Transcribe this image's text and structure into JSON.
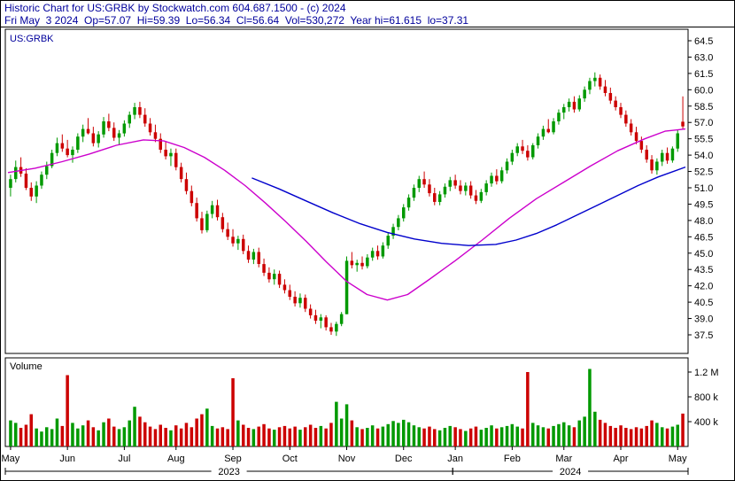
{
  "header": {
    "line1": "Historic Chart for US:GRBK by Stockwatch.com 604.687.1500 - (c) 2024",
    "line2": "Fri May  3 2024  Op=57.07  Hi=59.39  Lo=56.34  Cl=56.64  Vol=530,272  Year hi=61.615  lo=37.31"
  },
  "chart": {
    "symbol_label": "US:GRBK",
    "volume_label": "Volume"
  },
  "colors": {
    "header_text": "#00009c",
    "frame": "#000000",
    "text": "#000000",
    "up": "#009900",
    "down": "#cc0000",
    "ma_fast": "#cc00cc",
    "ma_slow": "#0000cc"
  },
  "chart_data": {
    "type": "candlestick",
    "title": "Historic Chart for US:GRBK (daily, May 2023 - May 2024)",
    "xlabel": "",
    "ylabel": "Price",
    "ylim": [
      37.5,
      64.5
    ],
    "grid": false,
    "price_axis": {
      "max": 64.5,
      "min": 37.5,
      "step": 1.5,
      "labels": [
        "64.5",
        "63.0",
        "61.5",
        "60.0",
        "58.5",
        "57.0",
        "55.5",
        "54.0",
        "52.5",
        "51.0",
        "49.5",
        "48.0",
        "46.5",
        "45.0",
        "43.5",
        "42.0",
        "40.5",
        "39.0",
        "37.5"
      ]
    },
    "volume_axis": {
      "unit_k": true,
      "ticks": [
        {
          "value": 1200,
          "label": "1.2 M"
        },
        {
          "value": 800,
          "label": "800 k"
        },
        {
          "value": 400,
          "label": "400 k"
        }
      ]
    },
    "months": [
      {
        "label": "May",
        "start": 0
      },
      {
        "label": "Jun",
        "start": 11
      },
      {
        "label": "Jul",
        "start": 22
      },
      {
        "label": "Aug",
        "start": 32
      },
      {
        "label": "Sep",
        "start": 43
      },
      {
        "label": "Oct",
        "start": 54
      },
      {
        "label": "Nov",
        "start": 65
      },
      {
        "label": "Dec",
        "start": 76
      },
      {
        "label": "Jan",
        "start": 86
      },
      {
        "label": "Feb",
        "start": 97
      },
      {
        "label": "Mar",
        "start": 107
      },
      {
        "label": "Apr",
        "start": 118
      },
      {
        "label": "May",
        "start": 129
      }
    ],
    "years": [
      {
        "label": "2023",
        "start": 0,
        "end": 86
      },
      {
        "label": "2024",
        "start": 86,
        "end": 131
      }
    ],
    "ohlc": [
      [
        51.0,
        52.2,
        50.2,
        51.8
      ],
      [
        51.8,
        53.5,
        51.5,
        52.9
      ],
      [
        52.9,
        53.8,
        52.0,
        52.3
      ],
      [
        52.3,
        52.8,
        50.8,
        51.0
      ],
      [
        51.0,
        51.5,
        49.8,
        50.2
      ],
      [
        50.2,
        51.6,
        49.6,
        51.2
      ],
      [
        51.2,
        52.5,
        50.9,
        52.2
      ],
      [
        52.2,
        53.4,
        51.8,
        53.0
      ],
      [
        53.0,
        54.5,
        52.8,
        54.2
      ],
      [
        54.2,
        55.6,
        53.9,
        55.1
      ],
      [
        55.1,
        55.9,
        54.3,
        54.6
      ],
      [
        54.6,
        55.4,
        53.8,
        54.0
      ],
      [
        54.0,
        54.8,
        53.3,
        54.5
      ],
      [
        54.5,
        56.0,
        54.2,
        55.7
      ],
      [
        55.7,
        56.8,
        55.2,
        56.4
      ],
      [
        56.4,
        57.4,
        55.9,
        56.0
      ],
      [
        56.0,
        56.6,
        54.8,
        55.1
      ],
      [
        55.1,
        56.2,
        54.7,
        55.9
      ],
      [
        55.9,
        57.5,
        55.6,
        57.1
      ],
      [
        57.1,
        57.8,
        56.2,
        56.5
      ],
      [
        56.5,
        57.0,
        55.3,
        55.6
      ],
      [
        55.6,
        56.3,
        54.9,
        56.0
      ],
      [
        56.0,
        57.2,
        55.7,
        56.9
      ],
      [
        56.9,
        58.0,
        56.5,
        57.7
      ],
      [
        57.7,
        58.8,
        57.3,
        58.4
      ],
      [
        58.4,
        58.9,
        57.4,
        57.7
      ],
      [
        57.7,
        58.3,
        56.6,
        56.9
      ],
      [
        56.9,
        57.4,
        55.8,
        56.1
      ],
      [
        56.1,
        56.8,
        55.2,
        55.5
      ],
      [
        55.5,
        56.0,
        54.2,
        54.5
      ],
      [
        54.5,
        55.2,
        53.6,
        53.9
      ],
      [
        53.9,
        54.6,
        53.0,
        54.2
      ],
      [
        54.2,
        54.6,
        52.6,
        52.9
      ],
      [
        52.9,
        53.3,
        51.5,
        51.8
      ],
      [
        51.8,
        52.4,
        50.4,
        50.7
      ],
      [
        50.7,
        51.2,
        49.3,
        49.6
      ],
      [
        49.6,
        50.1,
        47.9,
        48.2
      ],
      [
        48.2,
        48.8,
        46.8,
        47.1
      ],
      [
        47.1,
        48.9,
        46.9,
        48.6
      ],
      [
        48.6,
        49.8,
        48.2,
        49.4
      ],
      [
        49.4,
        49.9,
        48.0,
        48.3
      ],
      [
        48.3,
        48.7,
        46.9,
        47.2
      ],
      [
        47.2,
        47.8,
        46.2,
        46.5
      ],
      [
        46.5,
        47.2,
        45.6,
        45.9
      ],
      [
        45.9,
        46.6,
        45.3,
        46.3
      ],
      [
        46.3,
        46.7,
        44.9,
        45.2
      ],
      [
        45.2,
        45.7,
        44.1,
        44.4
      ],
      [
        44.4,
        45.4,
        44.0,
        45.1
      ],
      [
        45.1,
        45.5,
        43.7,
        44.0
      ],
      [
        44.0,
        44.5,
        42.9,
        43.2
      ],
      [
        43.2,
        43.7,
        42.3,
        42.6
      ],
      [
        42.6,
        43.5,
        42.1,
        43.1
      ],
      [
        43.1,
        43.4,
        41.8,
        42.1
      ],
      [
        42.1,
        42.6,
        41.3,
        41.6
      ],
      [
        41.6,
        42.1,
        40.7,
        41.0
      ],
      [
        41.0,
        41.5,
        40.1,
        40.4
      ],
      [
        40.4,
        41.3,
        40.0,
        40.9
      ],
      [
        40.9,
        41.2,
        39.6,
        39.9
      ],
      [
        39.9,
        40.3,
        39.0,
        39.3
      ],
      [
        39.3,
        39.8,
        38.5,
        38.8
      ],
      [
        38.8,
        39.4,
        38.1,
        39.1
      ],
      [
        39.1,
        39.3,
        37.9,
        38.2
      ],
      [
        38.2,
        38.6,
        37.5,
        37.8
      ],
      [
        37.8,
        38.7,
        37.4,
        38.5
      ],
      [
        38.5,
        39.6,
        38.3,
        39.4
      ],
      [
        39.4,
        44.7,
        39.4,
        44.3
      ],
      [
        44.3,
        45.1,
        43.6,
        43.9
      ],
      [
        43.9,
        44.4,
        43.3,
        44.1
      ],
      [
        44.1,
        44.7,
        43.5,
        43.8
      ],
      [
        43.8,
        44.9,
        43.6,
        44.6
      ],
      [
        44.6,
        45.5,
        44.3,
        45.2
      ],
      [
        45.2,
        45.7,
        44.4,
        44.7
      ],
      [
        44.7,
        46.0,
        44.5,
        45.7
      ],
      [
        45.7,
        46.9,
        45.4,
        46.6
      ],
      [
        46.6,
        47.7,
        46.3,
        47.4
      ],
      [
        47.4,
        48.5,
        47.1,
        48.2
      ],
      [
        48.2,
        49.5,
        47.9,
        49.2
      ],
      [
        49.2,
        50.4,
        48.9,
        50.1
      ],
      [
        50.1,
        51.3,
        49.8,
        51.0
      ],
      [
        51.0,
        52.1,
        50.6,
        51.8
      ],
      [
        51.8,
        52.5,
        51.0,
        51.3
      ],
      [
        51.3,
        51.8,
        50.2,
        50.5
      ],
      [
        50.5,
        51.0,
        49.4,
        49.7
      ],
      [
        49.7,
        50.7,
        49.4,
        50.4
      ],
      [
        50.4,
        51.4,
        50.1,
        51.1
      ],
      [
        51.1,
        52.0,
        50.7,
        51.7
      ],
      [
        51.7,
        52.2,
        50.9,
        51.2
      ],
      [
        51.2,
        51.7,
        50.4,
        50.7
      ],
      [
        50.7,
        51.5,
        50.3,
        51.2
      ],
      [
        51.2,
        51.6,
        50.0,
        50.3
      ],
      [
        50.3,
        50.8,
        49.5,
        49.8
      ],
      [
        49.8,
        50.9,
        49.6,
        50.6
      ],
      [
        50.6,
        51.7,
        50.3,
        51.4
      ],
      [
        51.4,
        52.4,
        51.1,
        52.1
      ],
      [
        52.1,
        52.7,
        51.3,
        51.6
      ],
      [
        51.6,
        52.9,
        51.4,
        52.6
      ],
      [
        52.6,
        53.7,
        52.3,
        53.4
      ],
      [
        53.4,
        54.5,
        53.1,
        54.2
      ],
      [
        54.2,
        55.1,
        53.9,
        54.8
      ],
      [
        54.8,
        55.4,
        54.1,
        54.4
      ],
      [
        54.4,
        54.9,
        53.5,
        53.8
      ],
      [
        53.8,
        55.1,
        53.6,
        54.9
      ],
      [
        54.9,
        56.0,
        54.6,
        55.7
      ],
      [
        55.7,
        56.7,
        55.4,
        56.4
      ],
      [
        56.4,
        57.3,
        56.0,
        56.1
      ],
      [
        56.1,
        57.4,
        55.9,
        57.1
      ],
      [
        57.1,
        58.2,
        56.8,
        57.9
      ],
      [
        57.9,
        58.7,
        57.3,
        58.4
      ],
      [
        58.4,
        59.2,
        58.0,
        58.9
      ],
      [
        58.9,
        59.4,
        57.9,
        58.2
      ],
      [
        58.2,
        59.5,
        58.0,
        59.2
      ],
      [
        59.2,
        60.3,
        58.9,
        60.0
      ],
      [
        60.0,
        61.1,
        59.6,
        60.8
      ],
      [
        60.8,
        61.6,
        60.3,
        61.1
      ],
      [
        61.1,
        61.4,
        60.0,
        60.3
      ],
      [
        60.3,
        60.9,
        59.4,
        59.7
      ],
      [
        59.7,
        60.2,
        58.7,
        59.0
      ],
      [
        59.0,
        59.4,
        58.1,
        58.4
      ],
      [
        58.4,
        58.8,
        57.4,
        57.7
      ],
      [
        57.7,
        58.1,
        56.6,
        56.9
      ],
      [
        56.9,
        57.3,
        55.8,
        56.1
      ],
      [
        56.1,
        56.6,
        55.0,
        55.3
      ],
      [
        55.3,
        55.7,
        54.2,
        54.5
      ],
      [
        54.5,
        54.9,
        53.3,
        53.6
      ],
      [
        53.6,
        54.0,
        52.3,
        52.6
      ],
      [
        52.6,
        53.7,
        52.2,
        53.4
      ],
      [
        53.4,
        54.5,
        53.0,
        54.2
      ],
      [
        54.2,
        54.7,
        53.2,
        53.5
      ],
      [
        53.5,
        54.8,
        53.3,
        54.6
      ],
      [
        54.6,
        56.3,
        54.3,
        56.0
      ],
      [
        57.07,
        59.39,
        56.34,
        56.64
      ]
    ],
    "volume_k": [
      420,
      380,
      300,
      350,
      520,
      290,
      240,
      310,
      280,
      450,
      330,
      1150,
      380,
      290,
      340,
      420,
      310,
      260,
      390,
      450,
      320,
      280,
      310,
      420,
      640,
      480,
      390,
      320,
      280,
      350,
      300,
      260,
      340,
      290,
      380,
      310,
      450,
      520,
      610,
      330,
      290,
      310,
      280,
      1100,
      420,
      350,
      300,
      280,
      320,
      360,
      290,
      270,
      310,
      330,
      290,
      320,
      270,
      310,
      350,
      300,
      330,
      290,
      380,
      720,
      450,
      680,
      420,
      310,
      280,
      300,
      340,
      290,
      320,
      360,
      410,
      380,
      430,
      390,
      340,
      310,
      290,
      320,
      280,
      260,
      300,
      330,
      310,
      280,
      250,
      290,
      320,
      270,
      300,
      340,
      290,
      310,
      330,
      360,
      320,
      290,
      1200,
      380,
      340,
      310,
      290,
      330,
      360,
      390,
      340,
      310,
      420,
      480,
      1250,
      560,
      430,
      380,
      330,
      300,
      340,
      300,
      280,
      310,
      290,
      330,
      420,
      380,
      310,
      290,
      320,
      350,
      530
    ],
    "ma_fast": {
      "name": "short moving average",
      "points": [
        [
          0.0,
          52.4
        ],
        [
          0.04,
          52.8
        ],
        [
          0.08,
          53.4
        ],
        [
          0.12,
          54.1
        ],
        [
          0.16,
          54.9
        ],
        [
          0.2,
          55.4
        ],
        [
          0.23,
          55.3
        ],
        [
          0.26,
          54.7
        ],
        [
          0.29,
          53.8
        ],
        [
          0.32,
          52.6
        ],
        [
          0.35,
          51.2
        ],
        [
          0.38,
          49.6
        ],
        [
          0.41,
          47.9
        ],
        [
          0.44,
          46.1
        ],
        [
          0.47,
          44.2
        ],
        [
          0.5,
          42.4
        ],
        [
          0.53,
          41.2
        ],
        [
          0.56,
          40.7
        ],
        [
          0.59,
          41.2
        ],
        [
          0.62,
          42.5
        ],
        [
          0.66,
          44.3
        ],
        [
          0.7,
          46.2
        ],
        [
          0.74,
          48.2
        ],
        [
          0.78,
          50.0
        ],
        [
          0.82,
          51.5
        ],
        [
          0.86,
          53.0
        ],
        [
          0.9,
          54.4
        ],
        [
          0.94,
          55.5
        ],
        [
          0.97,
          56.2
        ],
        [
          1.0,
          56.4
        ]
      ]
    },
    "ma_slow": {
      "name": "long moving average",
      "points": [
        [
          0.36,
          51.9
        ],
        [
          0.4,
          50.9
        ],
        [
          0.44,
          49.8
        ],
        [
          0.48,
          48.7
        ],
        [
          0.52,
          47.7
        ],
        [
          0.56,
          46.9
        ],
        [
          0.6,
          46.3
        ],
        [
          0.64,
          45.9
        ],
        [
          0.68,
          45.7
        ],
        [
          0.72,
          45.8
        ],
        [
          0.75,
          46.2
        ],
        [
          0.78,
          46.8
        ],
        [
          0.81,
          47.6
        ],
        [
          0.84,
          48.5
        ],
        [
          0.87,
          49.4
        ],
        [
          0.9,
          50.3
        ],
        [
          0.93,
          51.2
        ],
        [
          0.96,
          52.0
        ],
        [
          1.0,
          52.9
        ]
      ]
    }
  }
}
